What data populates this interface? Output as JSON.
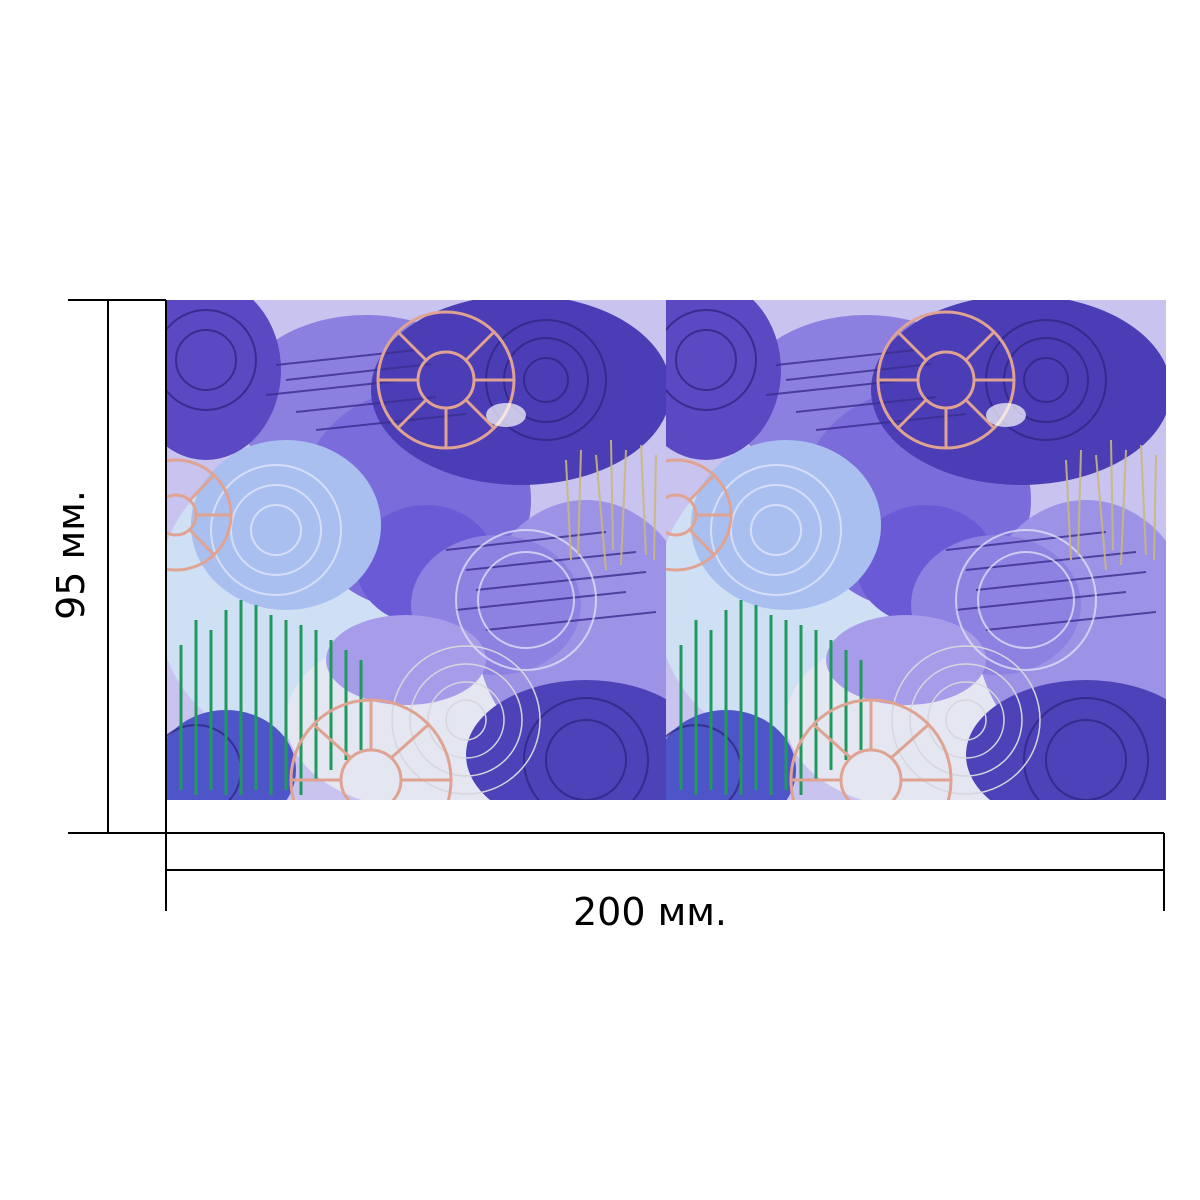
{
  "dimensions": {
    "height_label": "95 мм.",
    "width_label": "200 мм."
  },
  "pattern": {
    "description_colors": {
      "background": "#c9c3ef",
      "violet": "#6a5ad6",
      "deep_violet": "#4a3bb0",
      "lavender": "#a49ae8",
      "light_blue": "#b9d6f2",
      "rose_gold": "#e0a391",
      "green": "#1f9a5e",
      "gold": "#c9b87a",
      "silver": "#d6d6dc"
    }
  }
}
